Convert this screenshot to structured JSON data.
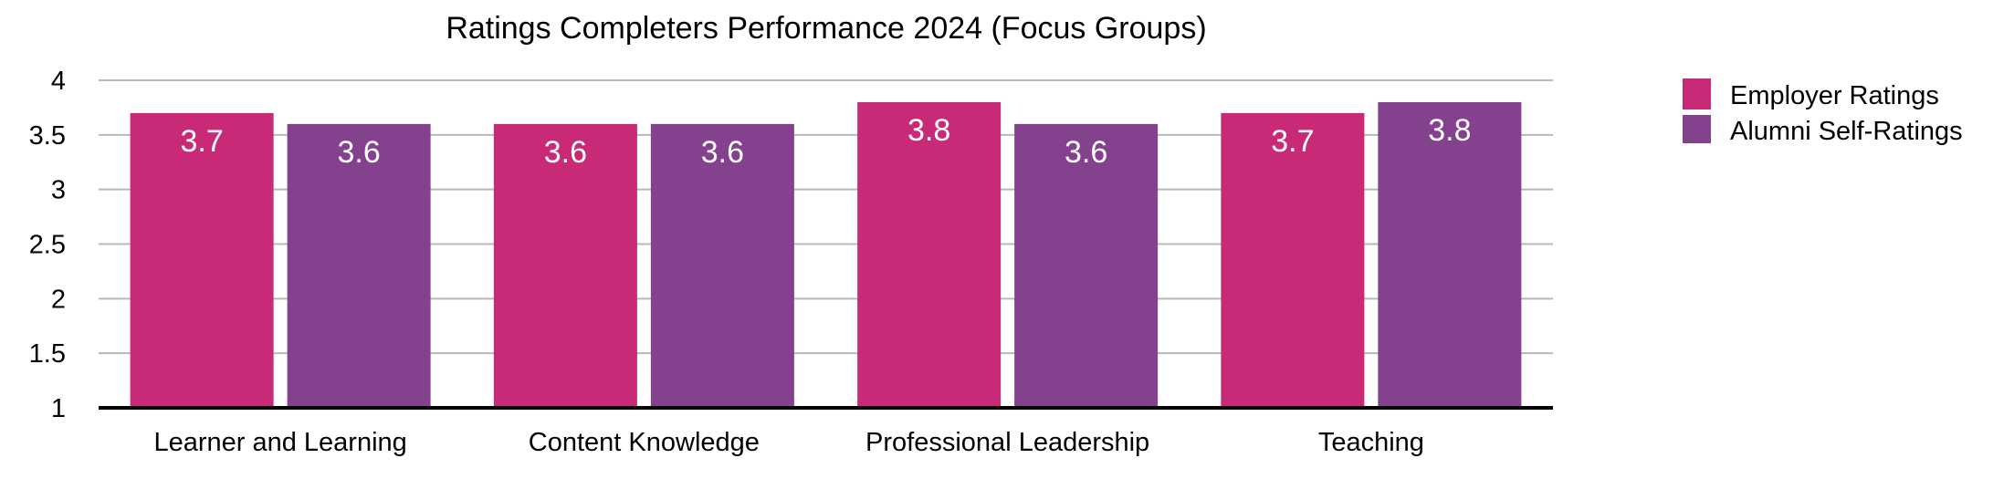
{
  "chart_data": {
    "type": "bar",
    "title": "Ratings Completers Performance 2024 (Focus Groups)",
    "xlabel": "",
    "ylabel": "",
    "ylim": [
      1,
      4
    ],
    "yticks": [
      "1",
      "1.5",
      "2",
      "2.5",
      "3",
      "3.5",
      "4"
    ],
    "ytick_values": [
      1,
      1.5,
      2,
      2.5,
      3,
      3.5,
      4
    ],
    "grid": true,
    "legend_position": "right",
    "categories": [
      "Learner and Learning",
      "Content Knowledge",
      "Professional Leadership",
      "Teaching"
    ],
    "series": [
      {
        "name": "Employer Ratings",
        "color": "#C92A77",
        "values": [
          3.7,
          3.6,
          3.8,
          3.7
        ],
        "labels": [
          "3.7",
          "3.6",
          "3.8",
          "3.7"
        ]
      },
      {
        "name": "Alumni Self-Ratings",
        "color": "#84418D",
        "values": [
          3.6,
          3.6,
          3.6,
          3.8
        ],
        "labels": [
          "3.6",
          "3.6",
          "3.6",
          "3.8"
        ]
      }
    ]
  }
}
